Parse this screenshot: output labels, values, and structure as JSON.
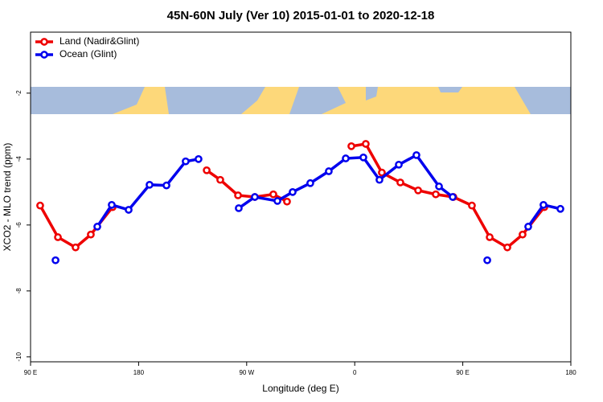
{
  "chart_data": {
    "type": "line",
    "title": "45N-60N July (Ver 10)   2015-01-01 to 2020-12-18",
    "x_label": "Longitude (deg E)",
    "y_label": "XCO2 - MLO trend (ppm)",
    "xlim": [
      90,
      540
    ],
    "ylim": [
      -10.15,
      -0.15
    ],
    "xticks": [
      {
        "value": 90,
        "label": "90 E"
      },
      180,
      {
        "value": 270,
        "label": "90 W"
      },
      {
        "value": 360,
        "label": "0"
      },
      {
        "value": 450,
        "label": "90 E"
      },
      {
        "value": 540,
        "label": "180"
      }
    ],
    "yticks": [
      -10,
      -8,
      -6,
      -4,
      -2
    ],
    "legend": "upper left",
    "series": [
      {
        "name": "Land (Nadir&Glint)",
        "color": "#ee0000",
        "x": [
          98.0,
          112.8,
          127.5,
          140.2,
          158.3,
          null,
          236.7,
          248.0,
          262.8,
          276.8,
          292.2,
          303.6,
          null,
          357.2,
          369.2,
          382.6,
          398.0,
          412.8,
          427.5,
          442.2,
          457.6,
          472.4,
          487.1,
          499.8,
          517.9
        ],
        "values": [
          -5.41,
          -6.37,
          -6.68,
          -6.29,
          -5.46,
          null,
          -4.34,
          -4.63,
          -5.1,
          -5.15,
          -5.07,
          -5.29,
          null,
          -3.61,
          -3.54,
          -4.41,
          -4.71,
          -4.95,
          -5.07,
          -5.15,
          -5.41,
          -6.37,
          -6.68,
          -6.29,
          -5.46
        ]
      },
      {
        "name": "Ocean (Glint)",
        "color": "#0000ee",
        "x": [
          110.8,
          null,
          145.6,
          157.6,
          171.7,
          189.1,
          203.2,
          219.2,
          229.9,
          null,
          263.4,
          276.8,
          295.6,
          308.3,
          323.0,
          338.4,
          352.5,
          367.2,
          380.6,
          396.7,
          411.4,
          430.2,
          441.6,
          null,
          470.4,
          null,
          504.5,
          517.2,
          531.3
        ],
        "values": [
          -7.07,
          null,
          -6.05,
          -5.39,
          -5.54,
          -4.78,
          -4.8,
          -4.07,
          -4.0,
          null,
          -5.49,
          -5.15,
          -5.27,
          -5.0,
          -4.73,
          -4.37,
          -3.98,
          -3.95,
          -4.63,
          -4.17,
          -3.88,
          -4.83,
          -5.15,
          null,
          -7.07,
          null,
          -6.05,
          -5.39,
          -5.51
        ]
      }
    ]
  }
}
